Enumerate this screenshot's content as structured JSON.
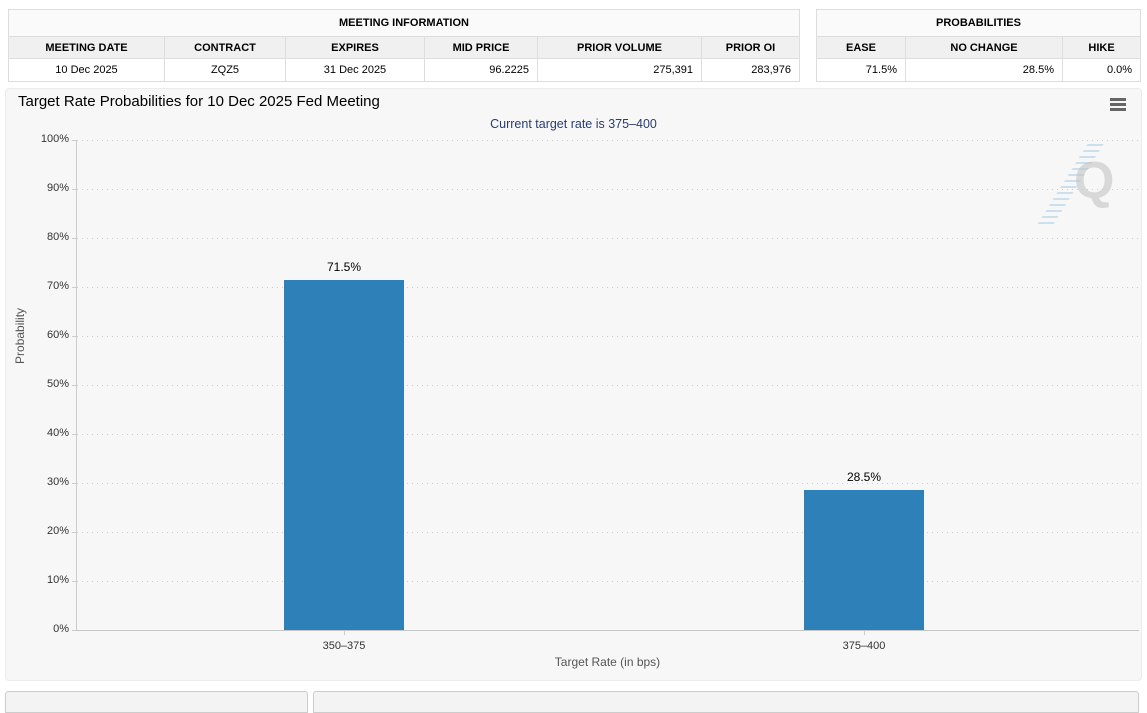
{
  "meeting_info": {
    "title": "MEETING INFORMATION",
    "columns": [
      "MEETING DATE",
      "CONTRACT",
      "EXPIRES",
      "MID PRICE",
      "PRIOR VOLUME",
      "PRIOR OI"
    ],
    "row": [
      "10 Dec 2025",
      "ZQZ5",
      "31 Dec 2025",
      "96.2225",
      "275,391",
      "283,976"
    ]
  },
  "probabilities": {
    "title": "PROBABILITIES",
    "columns": [
      "EASE",
      "NO CHANGE",
      "HIKE"
    ],
    "row": [
      "71.5%",
      "28.5%",
      "0.0%"
    ]
  },
  "chart": {
    "title": "Target Rate Probabilities for 10 Dec 2025 Fed Meeting",
    "subtitle": "Current target rate is 375–400",
    "menu_icon": "hamburger-menu-icon",
    "watermark_letter": "Q"
  },
  "chart_data": {
    "type": "bar",
    "title": "Target Rate Probabilities for 10 Dec 2025 Fed Meeting",
    "subtitle": "Current target rate is 375–400",
    "categories": [
      "350–375",
      "375–400"
    ],
    "values": [
      71.5,
      28.5
    ],
    "data_labels": [
      "71.5%",
      "28.5%"
    ],
    "xlabel": "Target Rate (in bps)",
    "ylabel": "Probability",
    "ylim": [
      0,
      100
    ],
    "ytick_step": 10,
    "ytick_labels": [
      "100%",
      "90%",
      "80%",
      "70%",
      "60%",
      "50%",
      "40%",
      "30%",
      "20%",
      "10%",
      "0%"
    ],
    "grid": "dotted-horizontal",
    "legend": "none",
    "bar_color": "#2e80b9",
    "plot_bg": "#f7f7f7"
  }
}
